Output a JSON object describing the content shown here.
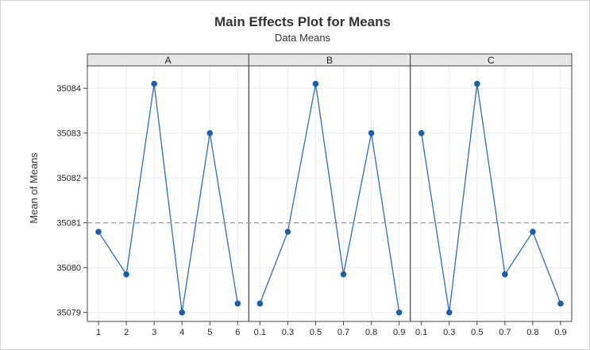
{
  "chart_data": {
    "type": "line",
    "title": "Main Effects Plot for Means",
    "subtitle": "Data Means",
    "ylabel": "Mean of Means",
    "ylim": [
      35078.8,
      35084.5
    ],
    "yticks": [
      35079,
      35080,
      35081,
      35082,
      35083,
      35084
    ],
    "reference_line": 35081,
    "grid": true,
    "colors": {
      "line": "#2f6db5",
      "point": "#1f5fa8",
      "strip": "#e6e6e6",
      "reference": "#9a9a9a"
    },
    "panels": [
      {
        "name": "A",
        "categories": [
          "1",
          "2",
          "3",
          "4",
          "5",
          "6"
        ],
        "values": [
          35080.8,
          35079.85,
          35084.1,
          35079.0,
          35083.0,
          35079.2
        ]
      },
      {
        "name": "B",
        "categories": [
          "0.1",
          "0.3",
          "0.5",
          "0.7",
          "0.8",
          "0.9"
        ],
        "values": [
          35079.2,
          35080.8,
          35084.1,
          35079.85,
          35083.0,
          35079.0
        ]
      },
      {
        "name": "C",
        "categories": [
          "0.1",
          "0.3",
          "0.5",
          "0.7",
          "0.8",
          "0.9"
        ],
        "values": [
          35083.0,
          35079.0,
          35084.1,
          35079.85,
          35080.8,
          35079.2
        ]
      }
    ]
  }
}
